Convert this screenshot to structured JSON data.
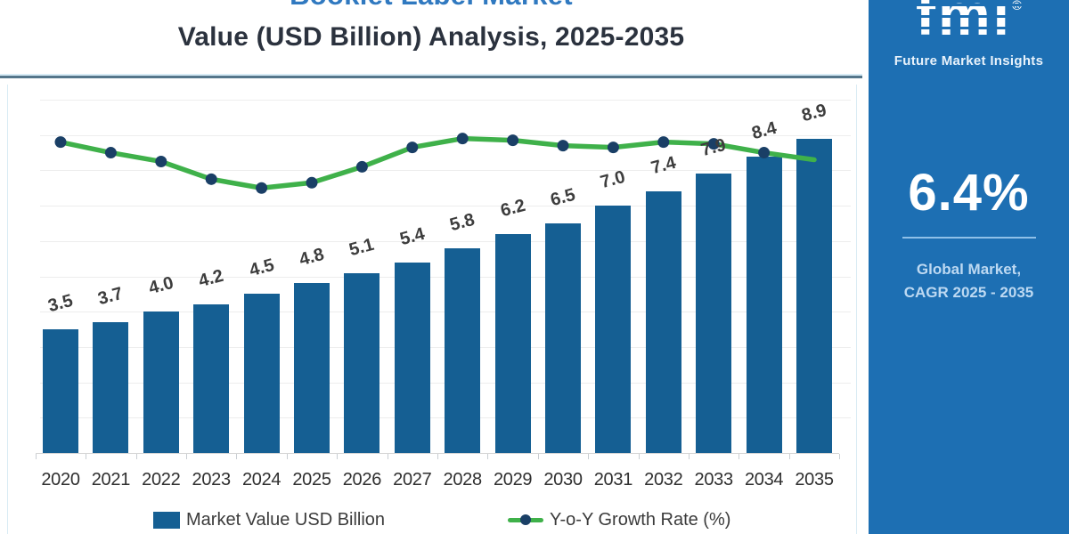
{
  "title": {
    "line1": "Booklet Label Market",
    "line2": "Value (USD Billion) Analysis, 2025-2035"
  },
  "legend": [
    {
      "label": "Market Value USD Billion",
      "swatch": "bar-swatch"
    },
    {
      "label": "Y-o-Y Growth Rate (%)",
      "swatch": "line-swatch"
    }
  ],
  "sidebar": {
    "logo_text": "fmi",
    "logo_reg": "®",
    "logo_subtext": "Future Market Insights",
    "cagr_value": "6.4%",
    "cagr_label_line1": "Global Market,",
    "cagr_label_line2": "CAGR 2025 - 2035",
    "bg_color": "#1d6fb3"
  },
  "chart_data": {
    "type": "bar+line combo",
    "title": "Booklet Label Market Value (USD Billion) Analysis, 2025-2035",
    "xlabel": "",
    "ylabel": "",
    "ylim": [
      0,
      10
    ],
    "grid": true,
    "legend_position": "bottom",
    "categories": [
      "2020",
      "2021",
      "2022",
      "2023",
      "2024",
      "2025",
      "2026",
      "2027",
      "2028",
      "2029",
      "2030",
      "2031",
      "2032",
      "2033",
      "2034",
      "2035"
    ],
    "series": [
      {
        "name": "Market Value USD Billion",
        "type": "bar",
        "color": "#155f93",
        "values": [
          3.5,
          3.7,
          4.0,
          4.2,
          4.5,
          4.8,
          5.1,
          5.4,
          5.8,
          6.2,
          6.5,
          7.0,
          7.4,
          7.9,
          8.4,
          8.9
        ]
      },
      {
        "name": "Y-o-Y Growth Rate (%)",
        "type": "line",
        "color": "#3fb14a",
        "marker_color": "#1a3f66",
        "axis": "secondary (unlabeled)",
        "note": "No secondary-axis tick labels shown; values estimated from plotted position on primary 0-10 scale",
        "values_est_axis_units": [
          8.8,
          8.5,
          8.25,
          7.75,
          7.5,
          7.65,
          8.1,
          8.65,
          8.9,
          8.85,
          8.7,
          8.65,
          8.8,
          8.75,
          8.5,
          8.3
        ]
      }
    ],
    "colors": {
      "bar": "#155f93",
      "line": "#3fb14a",
      "marker": "#1a3f66",
      "gridline": "#ededed",
      "title_accent": "#3079c0",
      "sidebar_bg": "#1d6fb3"
    }
  }
}
